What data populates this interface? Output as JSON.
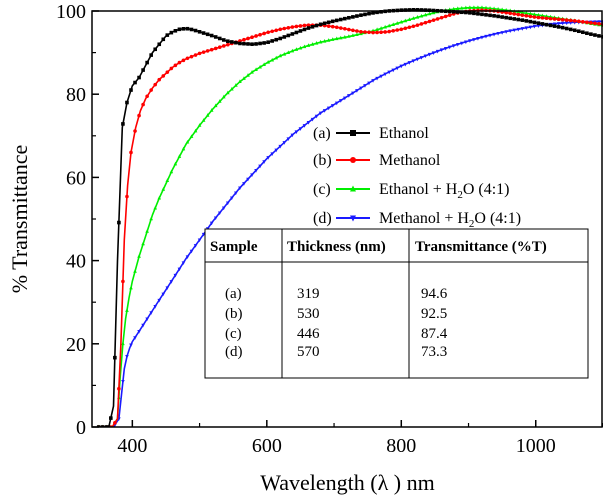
{
  "chart_data": {
    "type": "line",
    "xlabel": "Wavelength (λ ) nm",
    "ylabel": "% Transmittance",
    "xlim": [
      340,
      1100
    ],
    "ylim": [
      0,
      100
    ],
    "xticks": [
      400,
      600,
      800,
      1000
    ],
    "yticks": [
      0,
      20,
      40,
      60,
      80,
      100
    ],
    "grid": false,
    "legend_position": "right",
    "series": [
      {
        "id": "a",
        "name": "Ethanol",
        "prefix": "(a)",
        "color": "#000000",
        "marker": "square",
        "x": [
          350,
          365,
          372,
          378,
          385,
          392,
          400,
          410,
          420,
          430,
          440,
          450,
          460,
          470,
          480,
          490,
          500,
          520,
          540,
          560,
          580,
          600,
          620,
          640,
          660,
          680,
          700,
          720,
          740,
          760,
          780,
          800,
          820,
          840,
          860,
          880,
          900,
          920,
          940,
          960,
          980,
          1000,
          1020,
          1040,
          1060,
          1080,
          1100
        ],
        "y": [
          0,
          0,
          5,
          40,
          72,
          78,
          82,
          84,
          87,
          90,
          92,
          94,
          95,
          95.6,
          95.8,
          95.5,
          95,
          94,
          92.8,
          92.2,
          92,
          92.4,
          93.4,
          94.6,
          95.8,
          96.8,
          97.6,
          98.3,
          99,
          99.6,
          100,
          100.2,
          100.3,
          100.2,
          100,
          99.8,
          99.6,
          99.2,
          98.8,
          98.3,
          97.8,
          97.2,
          96.6,
          96,
          95.3,
          94.5,
          93.8
        ]
      },
      {
        "id": "b",
        "name": "Methanol",
        "prefix": "(b)",
        "color": "#ff0000",
        "marker": "circle",
        "x": [
          350,
          370,
          378,
          383,
          388,
          393,
          398,
          405,
          412,
          420,
          430,
          440,
          450,
          460,
          470,
          480,
          500,
          520,
          540,
          560,
          580,
          600,
          620,
          640,
          660,
          680,
          700,
          720,
          740,
          760,
          780,
          800,
          820,
          840,
          860,
          880,
          900,
          920,
          940,
          960,
          980,
          1000,
          1020,
          1040,
          1060,
          1080,
          1100
        ],
        "y": [
          0,
          0,
          2,
          20,
          45,
          58,
          66,
          72,
          76,
          79,
          81.5,
          83.5,
          85,
          86.5,
          87.6,
          88.5,
          89.8,
          90.8,
          91.8,
          92.8,
          93.8,
          94.8,
          95.6,
          96.2,
          96.6,
          96.6,
          96.2,
          95.6,
          95,
          94.8,
          95,
          95.6,
          96.4,
          97.4,
          98.4,
          99.4,
          100,
          100.2,
          100,
          99.5,
          99,
          98.5,
          98.2,
          97.9,
          97.6,
          97.2,
          96.8
        ]
      },
      {
        "id": "c",
        "name": "Ethanol + H2O (4:1)",
        "prefix": "(c)",
        "color": "#00ee00",
        "marker": "triangle-up",
        "x": [
          350,
          370,
          378,
          382,
          386,
          390,
          395,
          400,
          410,
          420,
          430,
          440,
          450,
          460,
          470,
          480,
          500,
          520,
          540,
          560,
          580,
          600,
          620,
          640,
          660,
          680,
          700,
          720,
          740,
          760,
          780,
          800,
          820,
          840,
          860,
          880,
          900,
          920,
          940,
          960,
          980,
          1000,
          1020,
          1040,
          1060,
          1080,
          1100
        ],
        "y": [
          0,
          0,
          2,
          12,
          20,
          26,
          31,
          35,
          41,
          46,
          51,
          55,
          58.5,
          62,
          65,
          68,
          72.5,
          76.5,
          80,
          83,
          85.5,
          87.5,
          89.2,
          90.5,
          91.6,
          92.5,
          93.2,
          93.8,
          94.5,
          95.3,
          96.3,
          97.3,
          98.3,
          99.2,
          100,
          100.5,
          100.8,
          100.8,
          100.5,
          100.1,
          99.6,
          99.1,
          98.6,
          98.1,
          97.6,
          97,
          96.5
        ]
      },
      {
        "id": "d",
        "name": "Methanol + H2O (4:1)",
        "prefix": "(d)",
        "color": "#1a1aff",
        "marker": "triangle-down",
        "x": [
          350,
          372,
          380,
          384,
          388,
          392,
          396,
          400,
          410,
          420,
          430,
          440,
          450,
          460,
          470,
          480,
          500,
          520,
          540,
          560,
          580,
          600,
          620,
          640,
          660,
          680,
          700,
          720,
          740,
          760,
          780,
          800,
          820,
          840,
          860,
          880,
          900,
          920,
          940,
          960,
          980,
          1000,
          1020,
          1040,
          1060,
          1080,
          1100
        ],
        "y": [
          0,
          0,
          2,
          8,
          14,
          17,
          19,
          20.5,
          23,
          25.5,
          28,
          30.5,
          33,
          35.5,
          38,
          40.5,
          45,
          49.5,
          53.5,
          57.5,
          61,
          64.5,
          67.5,
          70.5,
          73,
          75.5,
          77.5,
          79.5,
          81.5,
          83.5,
          85.2,
          86.8,
          88.2,
          89.5,
          90.7,
          91.8,
          92.8,
          93.7,
          94.5,
          95.2,
          95.8,
          96.4,
          96.8,
          97.1,
          97.3,
          97.4,
          97.5
        ]
      }
    ],
    "table": {
      "headers": [
        "Sample",
        "Thickness (nm)",
        "Transmittance (%T)"
      ],
      "rows": [
        [
          "(a)",
          "319",
          "94.6"
        ],
        [
          "(b)",
          "530",
          "92.5"
        ],
        [
          "(c)",
          "446",
          "87.4"
        ],
        [
          "(d)",
          "570",
          "73.3"
        ]
      ]
    }
  }
}
